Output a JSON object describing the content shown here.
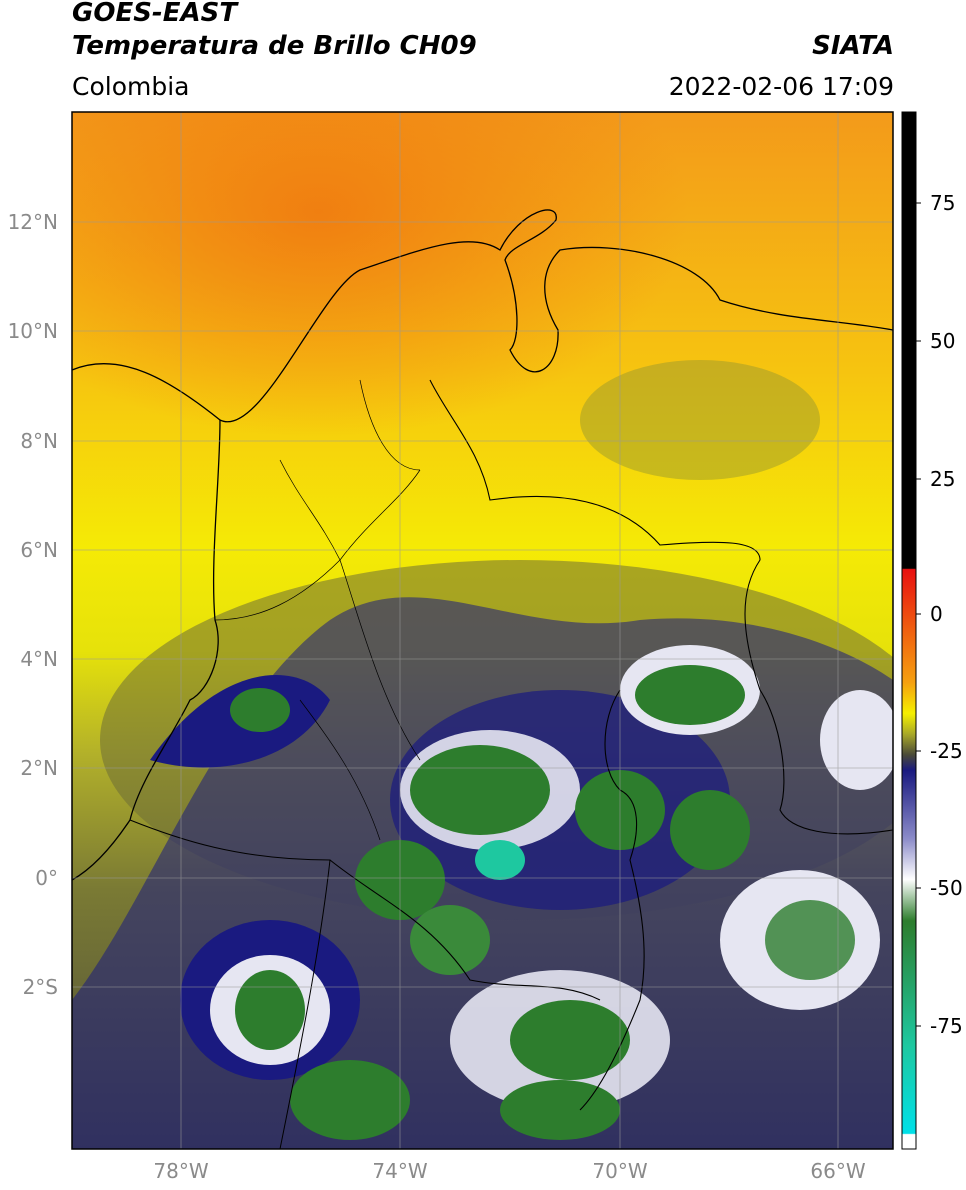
{
  "header": {
    "satellite": "GOES-EAST",
    "product": "Temperatura de Brillo CH09",
    "region": "Colombia",
    "source": "SIATA",
    "timestamp": "2022-02-06 17:09"
  },
  "axes": {
    "lat_labels": [
      "12°N",
      "10°N",
      "8°N",
      "6°N",
      "4°N",
      "2°N",
      "0°",
      "2°S"
    ],
    "lon_labels": [
      "78°W",
      "74°W",
      "70°W",
      "66°W"
    ]
  },
  "colorbar": {
    "ticks": [
      "75",
      "50",
      "25",
      "0",
      "-25",
      "-50",
      "-75"
    ],
    "colors": {
      "warm_orange": "#f08c14",
      "yellow": "#f5f000",
      "olive": "#a8a828",
      "dark_olive": "#4a4a38",
      "navy": "#1a1a80",
      "white": "#ffffff",
      "green": "#2d7d2d",
      "teal": "#1ec8a0",
      "cyan": "#00e0e8",
      "red": "#e81010",
      "black": "#000000"
    }
  }
}
